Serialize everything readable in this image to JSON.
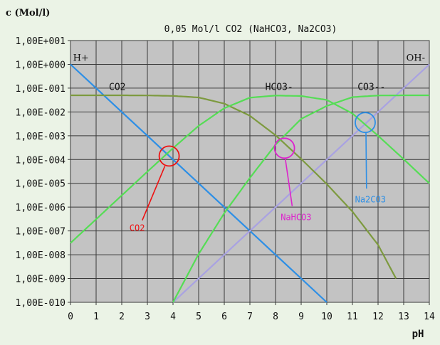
{
  "chart_data": {
    "type": "line",
    "title": "0,05 Mol/l CO2 (NaHCO3, Na2CO3)",
    "xlabel": "pH",
    "ylabel": "c (Mol/l)",
    "xlim": [
      0,
      14
    ],
    "ylim_log10": [
      -10,
      1
    ],
    "y_scale": "log",
    "grid": true,
    "x_ticks": [
      "0",
      "1",
      "2",
      "3",
      "4",
      "5",
      "6",
      "7",
      "8",
      "9",
      "10",
      "11",
      "12",
      "13",
      "14"
    ],
    "y_ticks": [
      "1,00E+001",
      "1,00E+000",
      "1,00E-001",
      "1,00E-002",
      "1,00E-003",
      "1,00E-004",
      "1,00E-005",
      "1,00E-006",
      "1,00E-007",
      "1,00E-008",
      "1,00E-009",
      "1,00E-010"
    ],
    "series": [
      {
        "name": "H+",
        "color": "#2d8fe6",
        "x": [
          0,
          10
        ],
        "y": [
          1,
          1e-10
        ]
      },
      {
        "name": "OH-",
        "color": "#a9a2e2",
        "x": [
          4,
          14
        ],
        "y": [
          1e-10,
          1
        ]
      },
      {
        "name": "CO2",
        "color": "#7d9a3f",
        "x": [
          0,
          1,
          2,
          3,
          4,
          5,
          6,
          7,
          8,
          9,
          10,
          11,
          12,
          12.7
        ],
        "y": [
          0.05,
          0.05,
          0.0499,
          0.0493,
          0.0472,
          0.0406,
          0.0224,
          0.0069,
          0.00105,
          0.000106,
          9.3e-06,
          6.5e-07,
          2.6e-08,
          1e-09
        ]
      },
      {
        "name": "HCO3-",
        "color": "#55dd55",
        "x": [
          0,
          1,
          2,
          3,
          4,
          5,
          6,
          7,
          8,
          9,
          10,
          11,
          12,
          13,
          14
        ],
        "y": [
          3.1e-08,
          3.1e-07,
          3.1e-06,
          3.1e-05,
          0.0003,
          0.0026,
          0.0144,
          0.0399,
          0.0489,
          0.0467,
          0.032,
          0.0086,
          0.001,
          0.000103,
          1e-05
        ]
      },
      {
        "name": "CO3--",
        "color": "#55dd55",
        "x": [
          4,
          5,
          6,
          7,
          8,
          9,
          10,
          11,
          12,
          13,
          14
        ],
        "y": [
          1e-10,
          1.07e-08,
          5.6e-07,
          1.7e-05,
          0.00042,
          0.0051,
          0.0179,
          0.042,
          0.049,
          0.0499,
          0.05
        ]
      }
    ],
    "series_labels": [
      {
        "text": "H+",
        "x": 0.1,
        "y": 1.4
      },
      {
        "text": "CO2",
        "x": 1.5,
        "y": 0.085
      },
      {
        "text": "HCO3-",
        "x": 7.6,
        "y": 0.085
      },
      {
        "text": "CO3--",
        "x": 11.2,
        "y": 0.085
      },
      {
        "text": "OH-",
        "x": 13.1,
        "y": 1.4
      }
    ],
    "annotations": [
      {
        "label": "CO2",
        "color": "#ee1111",
        "circle": [
          3.85,
          0.00014
        ],
        "label_at": [
          2.3,
          1e-07
        ],
        "line_end": [
          2.8,
          2.8e-07
        ]
      },
      {
        "label": "NaHCO3",
        "color": "#dd22cc",
        "circle": [
          8.35,
          0.0003
        ],
        "label_at": [
          8.2,
          2.8e-07
        ],
        "line_end": [
          8.65,
          1.1e-06
        ]
      },
      {
        "label": "Na2CO3",
        "color": "#2d8fe6",
        "circle": [
          11.5,
          0.0036
        ],
        "label_at": [
          11.1,
          1.6e-06
        ],
        "line_end": [
          11.55,
          6e-06
        ]
      }
    ]
  }
}
